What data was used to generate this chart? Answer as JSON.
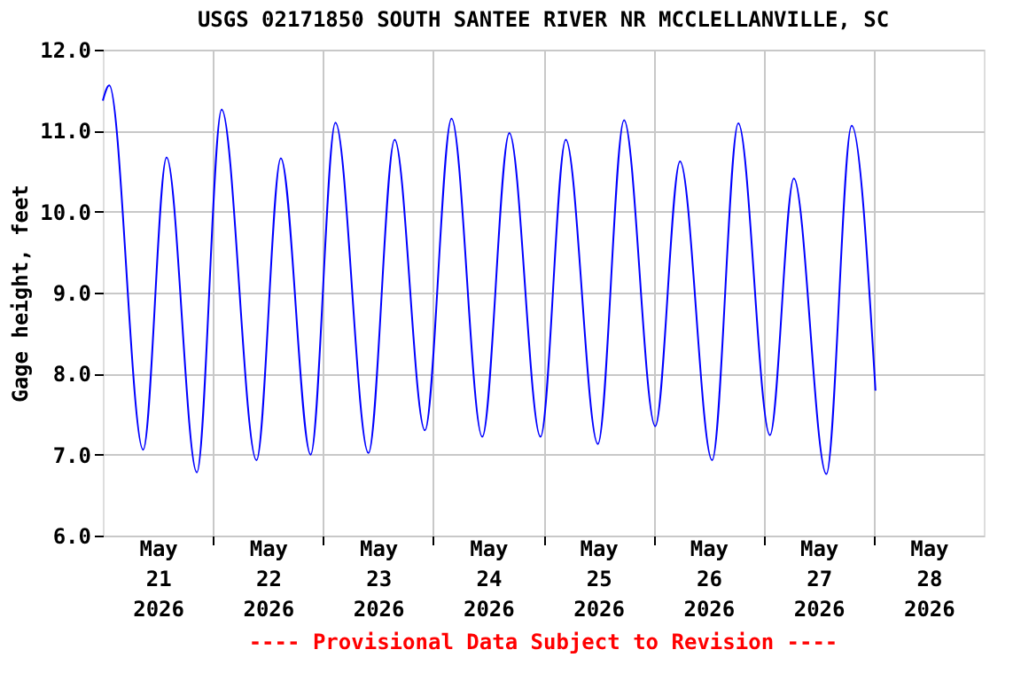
{
  "chart_data": {
    "type": "line",
    "title": "USGS 02171850 SOUTH SANTEE RIVER NR MCCLELLANVILLE, SC",
    "ylabel": "Gage height, feet",
    "annotations": [
      "---- Provisional Data Subject to Revision ----"
    ],
    "x": [
      "2026-05-21T00:00",
      "2026-05-21T01:24",
      "2026-05-21T08:48",
      "2026-05-21T13:54",
      "2026-05-21T20:30",
      "2026-05-22T01:54",
      "2026-05-22T09:30",
      "2026-05-22T14:48",
      "2026-05-22T21:18",
      "2026-05-23T02:42",
      "2026-05-23T09:54",
      "2026-05-23T15:36",
      "2026-05-23T22:12",
      "2026-05-24T04:00",
      "2026-05-24T10:42",
      "2026-05-24T16:36",
      "2026-05-24T23:24",
      "2026-05-25T04:54",
      "2026-05-25T11:54",
      "2026-05-25T17:36",
      "2026-05-26T00:24",
      "2026-05-26T05:48",
      "2026-05-26T12:48",
      "2026-05-26T18:30",
      "2026-05-27T01:24",
      "2026-05-27T06:36",
      "2026-05-27T13:42",
      "2026-05-27T19:12",
      "2026-05-28T00:24"
    ],
    "series": [
      {
        "color": "#0000ff",
        "values": [
          11.37,
          11.56,
          7.06,
          10.67,
          6.78,
          11.26,
          6.93,
          10.66,
          7.0,
          11.1,
          7.02,
          10.89,
          7.3,
          11.15,
          7.22,
          10.97,
          7.22,
          10.89,
          7.13,
          11.13,
          7.35,
          10.62,
          6.93,
          11.09,
          7.24,
          10.41,
          6.76,
          11.06,
          7.79
        ]
      }
    ],
    "xlim": [
      "2026-05-21T00:00",
      "2026-05-29T00:00"
    ],
    "xticks": [
      {
        "value": "2026-05-22T00:00",
        "label": null
      },
      {
        "value": "2026-05-23T00:00",
        "label": null
      },
      {
        "value": "2026-05-24T00:00",
        "label": null
      },
      {
        "value": "2026-05-25T00:00",
        "label": null
      },
      {
        "value": "2026-05-26T00:00",
        "label": null
      },
      {
        "value": "2026-05-27T00:00",
        "label": null
      },
      {
        "value": "2026-05-28T00:00",
        "label": null
      },
      {
        "value": "2026-05-21T12:00",
        "label": "May 21 2026"
      },
      {
        "value": "2026-05-22T12:00",
        "label": "May 22 2026"
      },
      {
        "value": "2026-05-23T12:00",
        "label": "May 23 2026"
      },
      {
        "value": "2026-05-24T12:00",
        "label": "May 24 2026"
      },
      {
        "value": "2026-05-25T12:00",
        "label": "May 25 2026"
      },
      {
        "value": "2026-05-26T12:00",
        "label": "May 26 2026"
      },
      {
        "value": "2026-05-27T12:00",
        "label": "May 27 2026"
      },
      {
        "value": "2026-05-28T12:00",
        "label": "May 28 2026"
      }
    ],
    "ylim": [
      6,
      12
    ],
    "yticks": [
      {
        "value": 6,
        "label": "6.0"
      },
      {
        "value": 7,
        "label": "7.0"
      },
      {
        "value": 8,
        "label": "8.0"
      },
      {
        "value": 9,
        "label": "9.0"
      },
      {
        "value": 10,
        "label": "10.0"
      },
      {
        "value": 11,
        "label": "11.0"
      },
      {
        "value": 12,
        "label": "12.0"
      }
    ],
    "grid": true,
    "marker": "none",
    "line_style": "solid"
  }
}
